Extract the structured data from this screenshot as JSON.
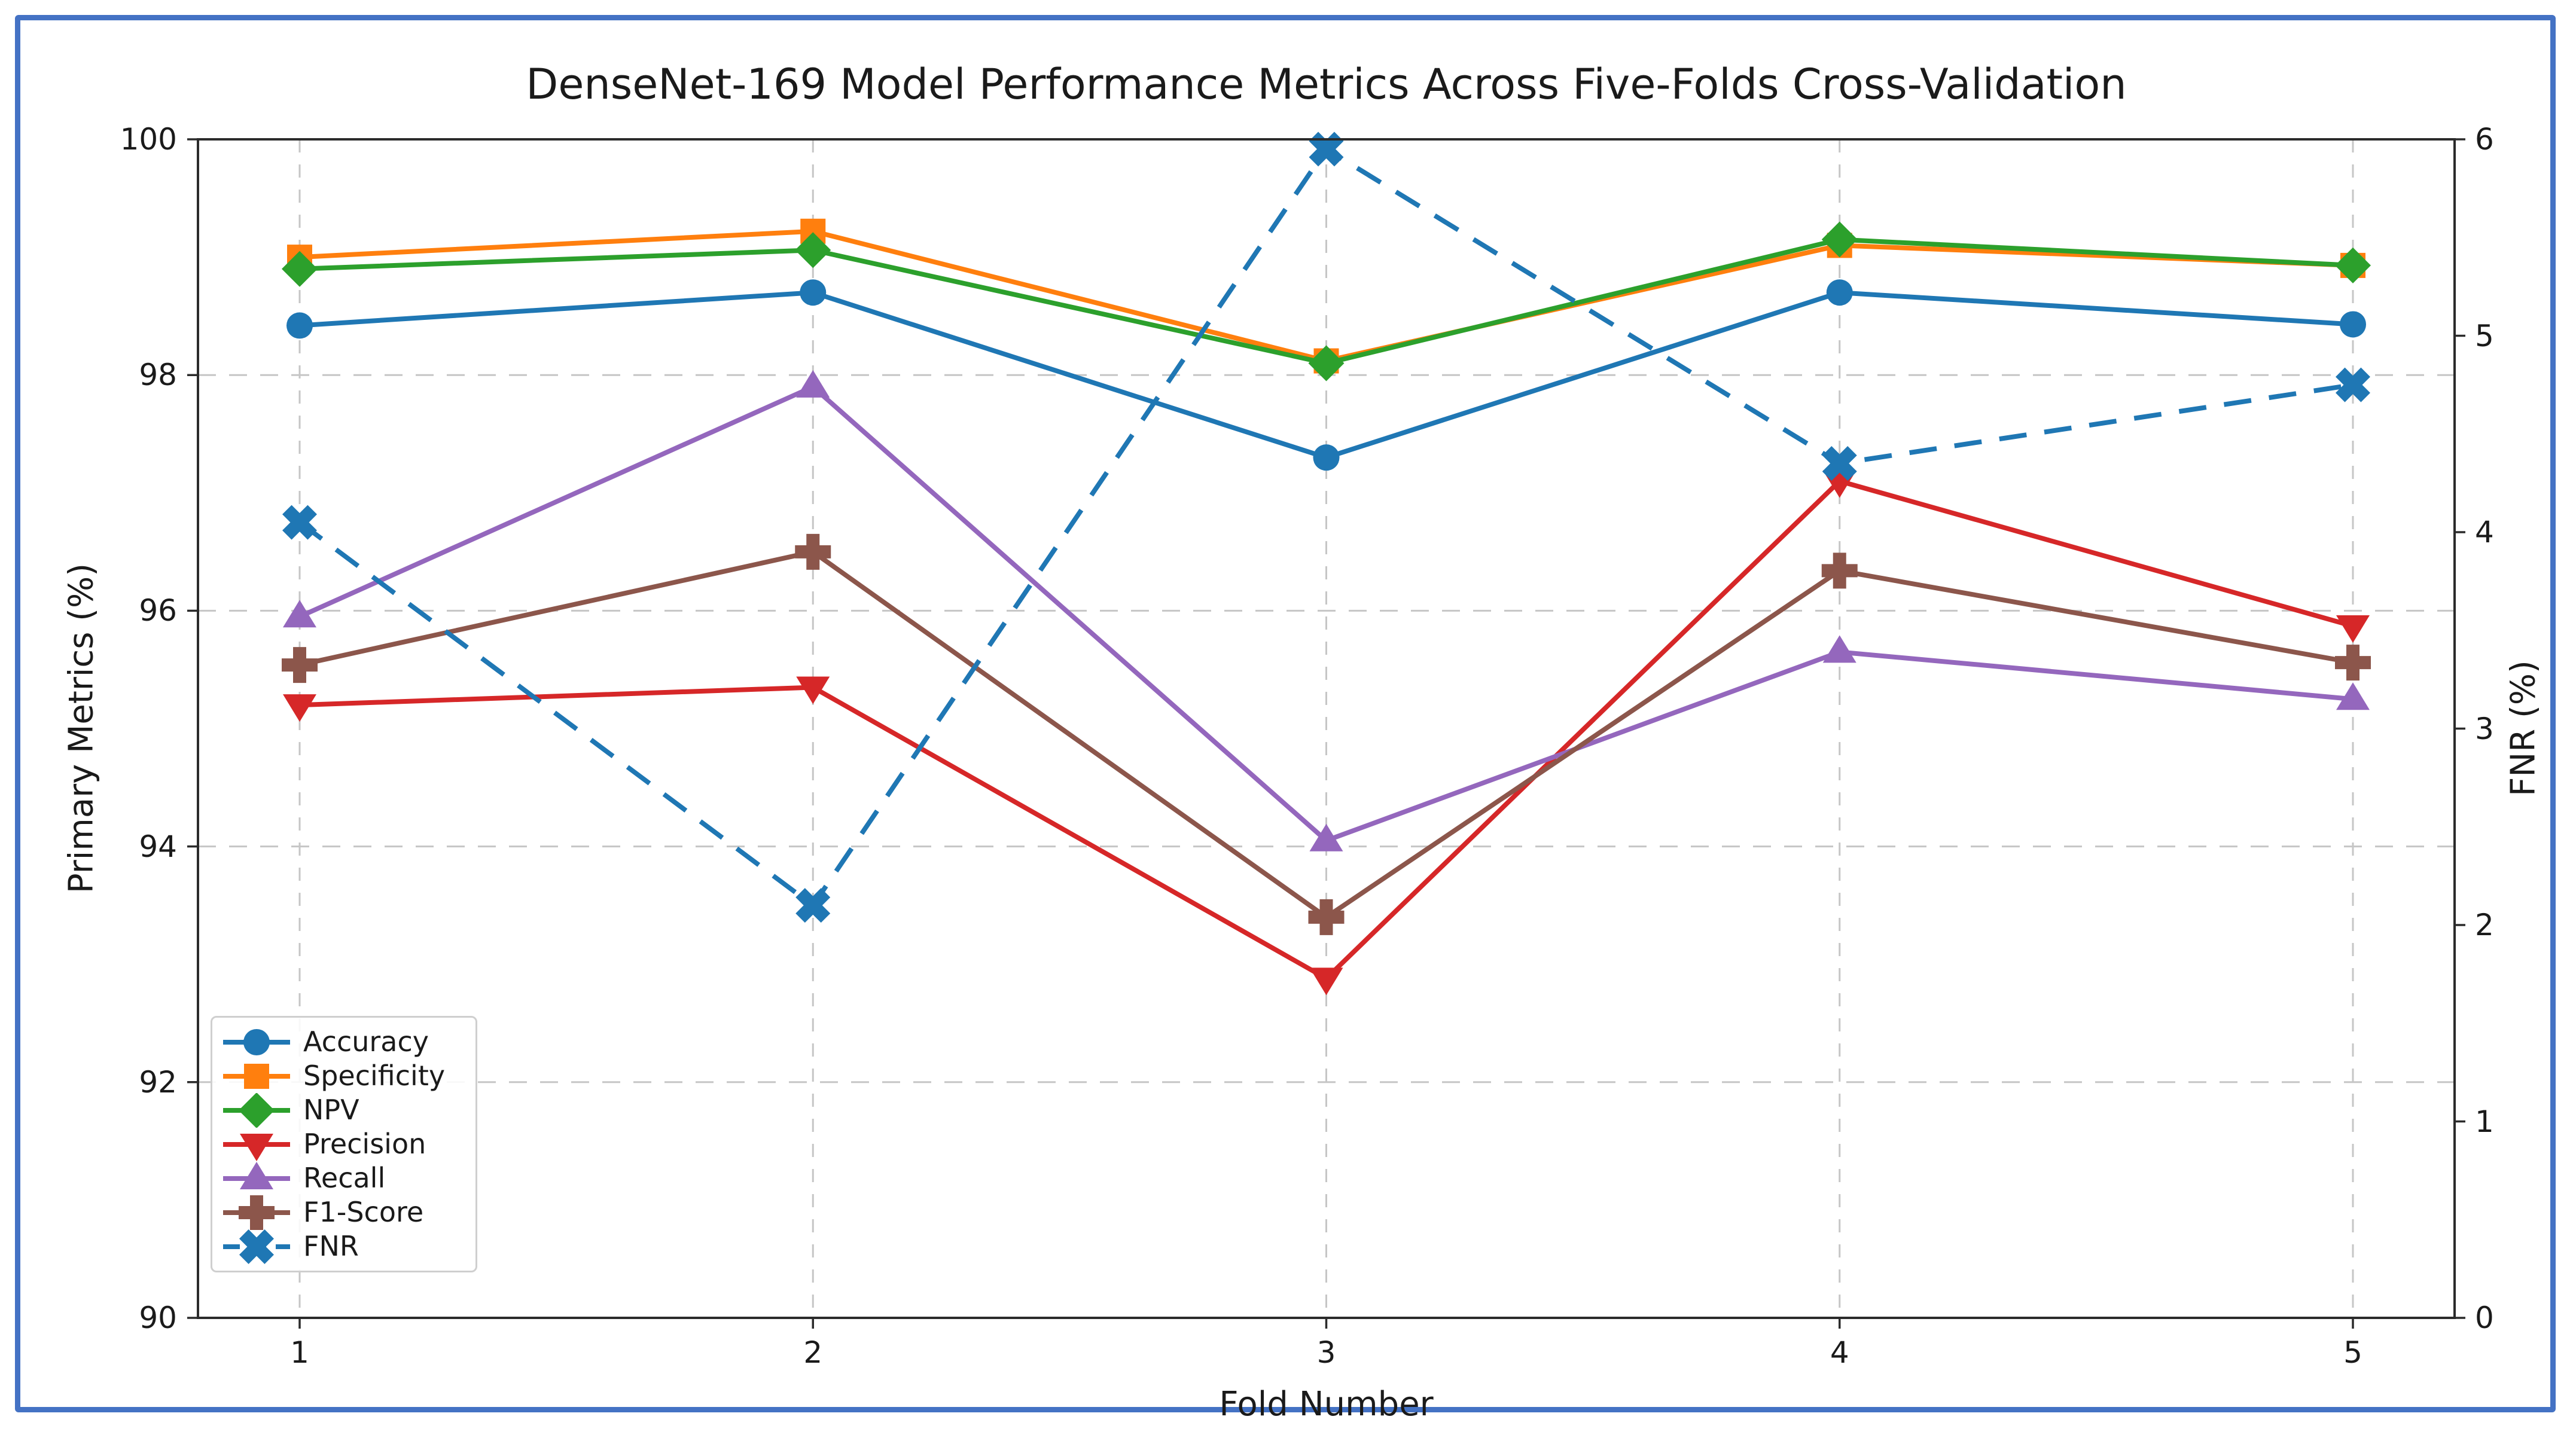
{
  "figure": {
    "border_color": "#4472C4",
    "background_color": "#ffffff",
    "spine_color": "#2b2b2b",
    "grid_color": "#c6c6c6"
  },
  "chart_data": {
    "type": "line",
    "title": "DenseNet-169 Model Performance Metrics Across Five-Folds Cross-Validation",
    "xlabel": "Fold Number",
    "ylabel_left": "Primary Metrics (%)",
    "ylabel_right": "FNR (%)",
    "x": [
      1,
      2,
      3,
      4,
      5
    ],
    "x_tick_labels": [
      "1",
      "2",
      "3",
      "4",
      "5"
    ],
    "left_axis": {
      "label": "Primary Metrics (%)",
      "min": 90,
      "max": 100,
      "ticks": [
        90,
        92,
        94,
        96,
        98,
        100
      ]
    },
    "right_axis": {
      "label": "FNR (%)",
      "min": 0,
      "max": 6,
      "ticks": [
        0,
        1,
        2,
        3,
        4,
        5,
        6
      ]
    },
    "grid": {
      "horizontal_at": [
        92,
        94,
        96,
        98
      ],
      "vertical_at": [
        1,
        2,
        3,
        4,
        5
      ],
      "style": "dashed"
    },
    "legend_position": "lower-left",
    "series": [
      {
        "name": "Accuracy",
        "axis": "left",
        "color": "#1f77b4",
        "marker": "circle",
        "line": "solid",
        "values": [
          98.42,
          98.7,
          97.3,
          98.7,
          98.43
        ]
      },
      {
        "name": "Specificity",
        "axis": "left",
        "color": "#ff7f0e",
        "marker": "square",
        "line": "solid",
        "values": [
          99.0,
          99.22,
          98.12,
          99.1,
          98.93
        ]
      },
      {
        "name": "NPV",
        "axis": "left",
        "color": "#2ca02c",
        "marker": "diamond",
        "line": "solid",
        "values": [
          98.9,
          99.06,
          98.1,
          99.15,
          98.93
        ]
      },
      {
        "name": "Precision",
        "axis": "left",
        "color": "#d62728",
        "marker": "triangle-down",
        "line": "solid",
        "values": [
          95.2,
          95.35,
          92.88,
          97.1,
          95.87
        ]
      },
      {
        "name": "Recall",
        "axis": "left",
        "color": "#9467bd",
        "marker": "triangle-up",
        "line": "solid",
        "values": [
          95.95,
          97.9,
          94.05,
          95.65,
          95.25
        ]
      },
      {
        "name": "F1-Score",
        "axis": "left",
        "color": "#8c564b",
        "marker": "plus",
        "line": "solid",
        "values": [
          95.54,
          96.5,
          93.4,
          96.34,
          95.56
        ]
      },
      {
        "name": "FNR",
        "axis": "right",
        "color": "#1f77b4",
        "marker": "x",
        "line": "dashed",
        "values": [
          4.05,
          2.1,
          5.95,
          4.35,
          4.75
        ]
      }
    ]
  }
}
